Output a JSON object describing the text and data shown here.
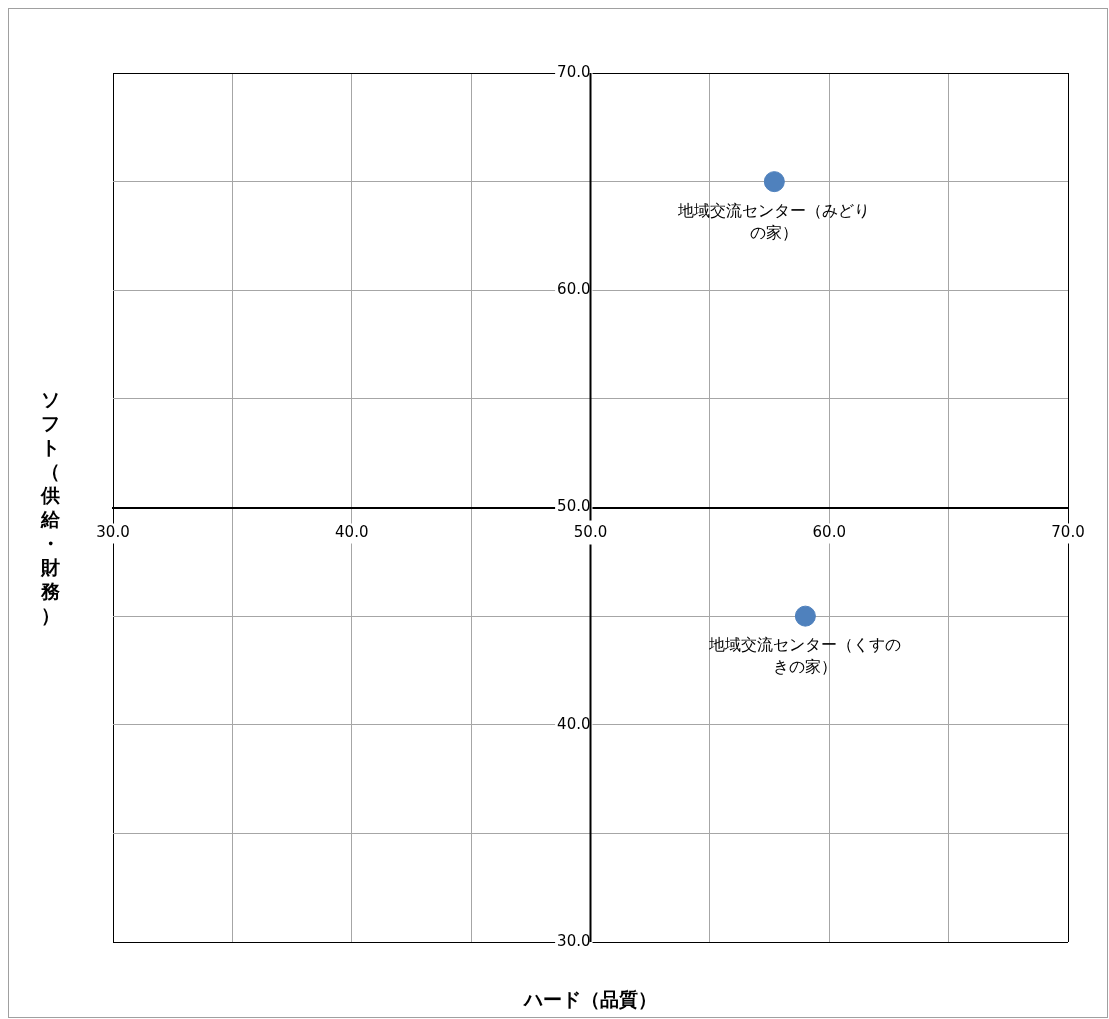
{
  "chart_data": {
    "type": "scatter",
    "xlabel": "ハード（品質）",
    "ylabel": "ソフト（供給・財務）",
    "x": [
      57.7,
      59.0
    ],
    "series": [
      {
        "color": "#4f81bd",
        "values": [
          65.0,
          45.0
        ]
      }
    ],
    "xlim": [
      30,
      70
    ],
    "xticks": [
      {
        "value": 30,
        "label": "30.0"
      },
      {
        "value": 35,
        "label": null
      },
      {
        "value": 40,
        "label": "40.0"
      },
      {
        "value": 45,
        "label": null
      },
      {
        "value": 50,
        "label": "50.0"
      },
      {
        "value": 55,
        "label": null
      },
      {
        "value": 60,
        "label": "60.0"
      },
      {
        "value": 65,
        "label": null
      },
      {
        "value": 70,
        "label": "70.0"
      }
    ],
    "ylim": [
      30,
      70
    ],
    "yticks": [
      {
        "value": 30,
        "label": "30.0"
      },
      {
        "value": 35,
        "label": null
      },
      {
        "value": 40,
        "label": "40.0"
      },
      {
        "value": 45,
        "label": null
      },
      {
        "value": 50,
        "label": "50.0"
      },
      {
        "value": 55,
        "label": null
      },
      {
        "value": 60,
        "label": "60.0"
      },
      {
        "value": 65,
        "label": null
      },
      {
        "value": 70,
        "label": "70.0"
      }
    ],
    "grid": true,
    "legend": false,
    "marker": "circle",
    "annotations": [
      {
        "text": "地域交流センター（みどりの家）",
        "x": 57.7,
        "y": 65.0
      },
      {
        "text": "地域交流センター（くすのきの家）",
        "x": 59.0,
        "y": 45.0
      }
    ]
  }
}
